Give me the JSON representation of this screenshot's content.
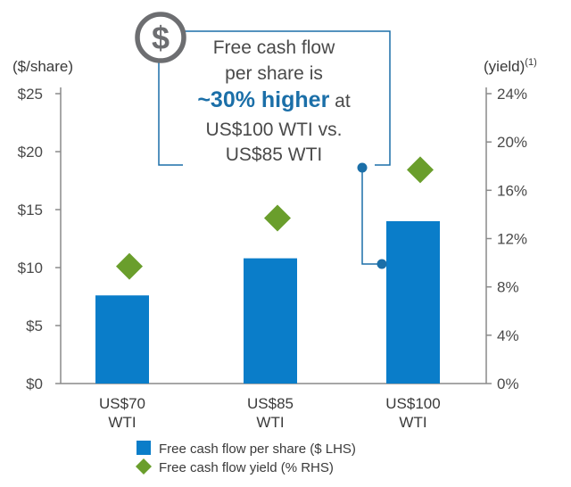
{
  "chart_data": {
    "type": "bar",
    "categories": [
      [
        "US$70",
        "WTI"
      ],
      [
        "US$85",
        "WTI"
      ],
      [
        "US$100",
        "WTI"
      ]
    ],
    "series": [
      {
        "name": "Free cash flow per share ($ LHS)",
        "type": "bar",
        "axis": "left",
        "values": [
          7.6,
          10.8,
          14.0
        ]
      },
      {
        "name": "Free cash flow yield (% RHS)",
        "type": "scatter",
        "marker": "diamond",
        "axis": "right",
        "values": [
          9.7,
          13.7,
          17.7
        ]
      }
    ],
    "left_axis": {
      "label": "($/share)",
      "ylim": [
        0,
        25
      ],
      "ticks": [
        "$0",
        "$5",
        "$10",
        "$15",
        "$20",
        "$25"
      ],
      "tick_values": [
        0,
        5,
        10,
        15,
        20,
        25
      ]
    },
    "right_axis": {
      "label": "(yield)",
      "label_sup": "(1)",
      "ylim": [
        0,
        24
      ],
      "ticks": [
        "0%",
        "4%",
        "8%",
        "12%",
        "16%",
        "20%",
        "24%"
      ],
      "tick_values": [
        0,
        4,
        8,
        12,
        16,
        20,
        24
      ]
    },
    "colors": {
      "bar": "#0a7dc9",
      "marker": "#6a9e2c",
      "callout": "#1b6fa8",
      "axis": "#8a8a8a",
      "icon": "#6d6e71"
    },
    "annotation": {
      "lines": [
        [
          "Free cash flow"
        ],
        [
          "per share is"
        ],
        [
          "~30% higher",
          " at"
        ],
        [
          "US$100 WTI vs."
        ],
        [
          "US$85 WTI"
        ]
      ],
      "icon": "dollar-circle-icon"
    },
    "legend_position": "bottom"
  }
}
